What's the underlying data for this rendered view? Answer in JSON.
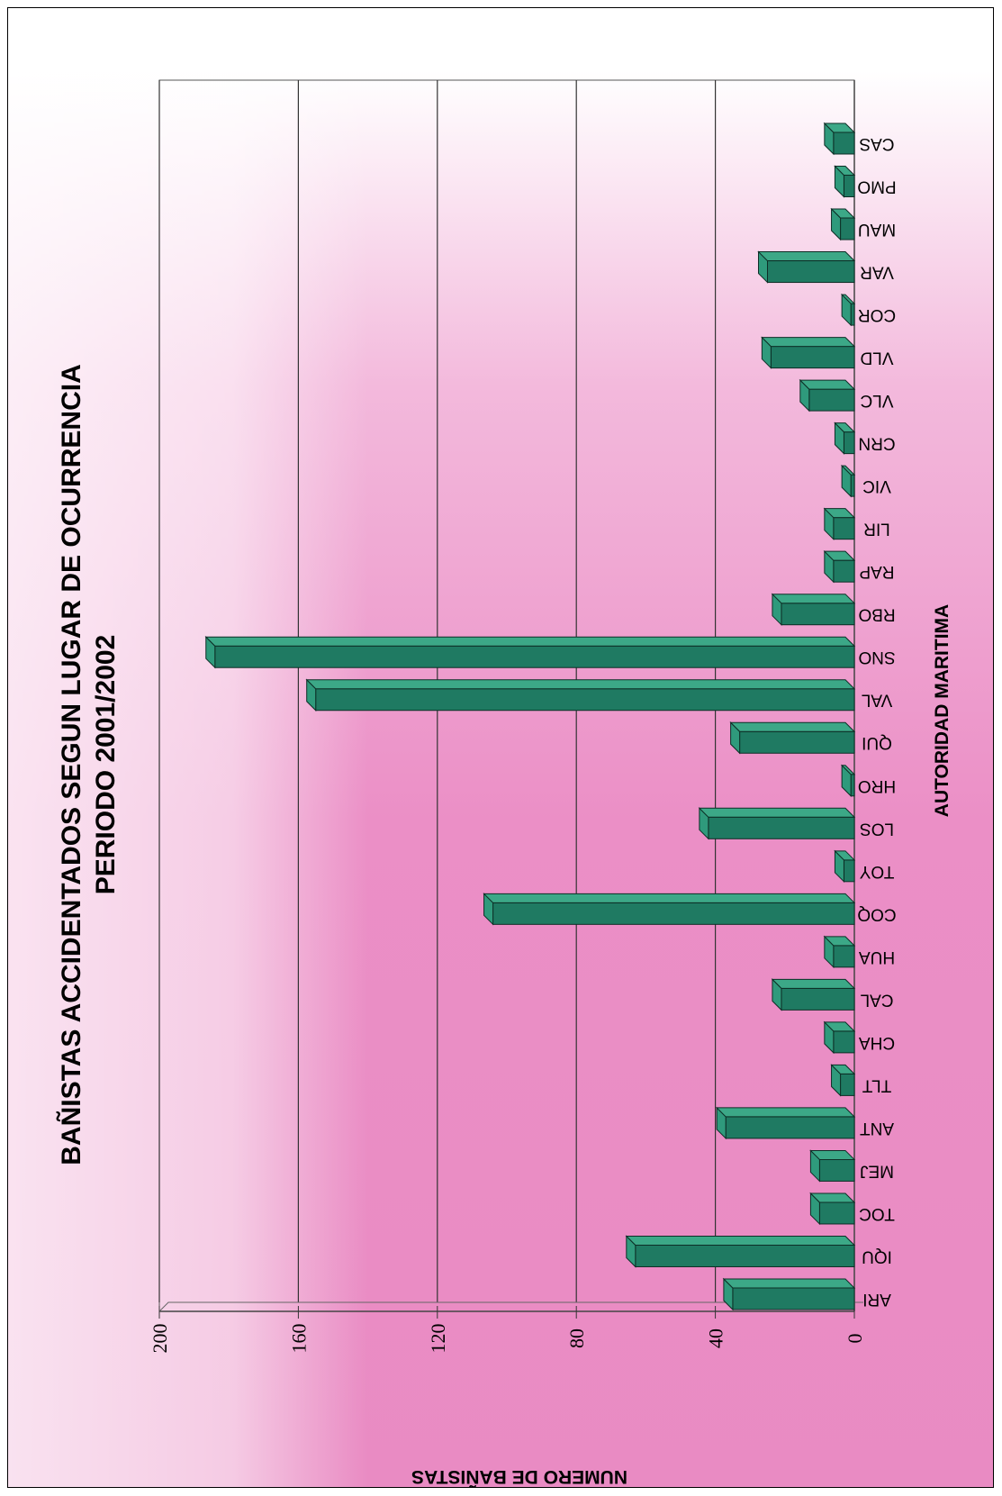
{
  "chart_data": {
    "type": "bar",
    "title": "BAÑISTAS ACCIDENTADOS SEGUN LUGAR DE OCURRENCIA",
    "subtitle": "PERIODO 2001/2002",
    "xlabel": "AUTORIDAD MARITIMA",
    "ylabel": "NUMERO DE BAÑISTAS",
    "categories": [
      "ARI",
      "IQU",
      "TOC",
      "MEJ",
      "ANT",
      "TLT",
      "CHA",
      "CAL",
      "HUA",
      "COQ",
      "TOY",
      "LOS",
      "HRO",
      "QUI",
      "VAL",
      "SNO",
      "RBO",
      "RAP",
      "LIR",
      "VIC",
      "CRN",
      "VLC",
      "VLD",
      "COR",
      "VAR",
      "MAU",
      "PMO",
      "CAS"
    ],
    "values": [
      35,
      63,
      10,
      10,
      37,
      4,
      6,
      21,
      6,
      104,
      3,
      42,
      1,
      33,
      155,
      184,
      21,
      6,
      6,
      1,
      3,
      13,
      24,
      1,
      25,
      4,
      3,
      6
    ],
    "ylim": [
      0,
      200
    ],
    "yticks": [
      0,
      40,
      80,
      120,
      160,
      200
    ],
    "grid": true,
    "bar_color": "#1f7a62"
  }
}
